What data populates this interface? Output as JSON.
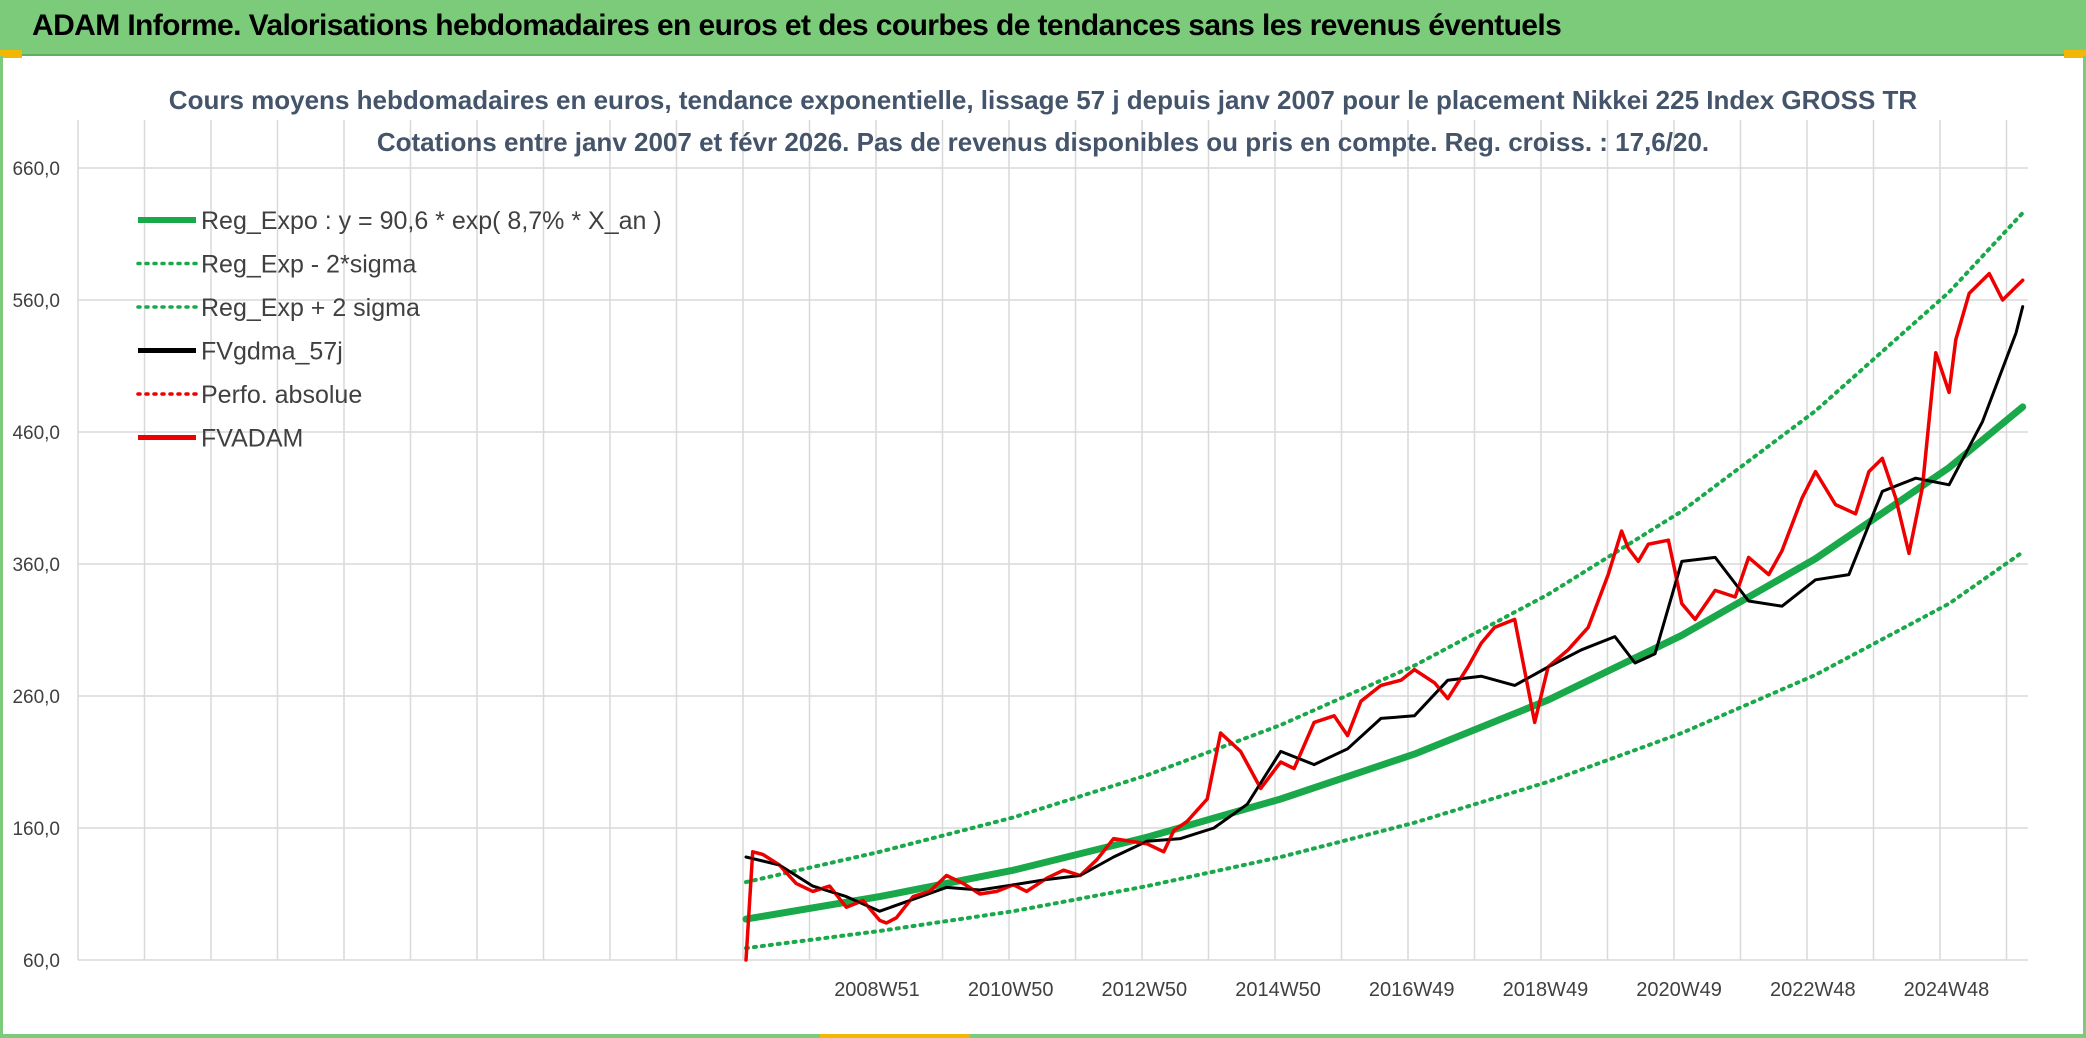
{
  "header": {
    "title": "ADAM Informe. Valorisations hebdomadaires en euros et des courbes de tendances sans les revenus éventuels"
  },
  "colors": {
    "header_bg": "#7ccb7b",
    "accent": "#f2b705",
    "reg_green": "#19a84a",
    "fv_red": "#ee0000",
    "gdma_black": "#000000"
  },
  "chart_data": {
    "type": "line",
    "title": "Cours moyens hebdomadaires en euros, tendance exponentielle, lissage 57 j depuis janv 2007 pour le placement Nikkei 225 Index GROSS TR",
    "subtitle": "Cotations entre janv 2007 et févr 2026. Pas de revenus disponibles ou pris en compte. Reg. croiss. : 17,6/20.",
    "xlabel": "",
    "ylabel": "",
    "ylim": [
      60,
      660
    ],
    "yticks": [
      "60,0",
      "160,0",
      "260,0",
      "360,0",
      "460,0",
      "560,0",
      "660,0"
    ],
    "xticks": [
      "2008W51",
      "2010W50",
      "2012W50",
      "2014W50",
      "2016W49",
      "2018W49",
      "2020W49",
      "2022W48",
      "2024W48"
    ],
    "xtick_years": [
      2008.96,
      2010.96,
      2012.96,
      2014.96,
      2016.96,
      2018.96,
      2020.96,
      2022.96,
      2024.96
    ],
    "grid": true,
    "legend_position": "top-left",
    "series": [
      {
        "name": "Reg_Expo : y = 90,6 * exp( 8,7% *  X_an )",
        "color": "#19a84a",
        "style": "solid-thick",
        "x": [
          2007.0,
          2009.0,
          2011.0,
          2013.0,
          2015.0,
          2017.0,
          2019.0,
          2021.0,
          2023.0,
          2025.0,
          2026.1
        ],
        "y": [
          91,
          108,
          128,
          153,
          182,
          216,
          257,
          306,
          364,
          433,
          479
        ]
      },
      {
        "name": "Reg_Exp - 2*sigma",
        "color": "#19a84a",
        "style": "dotted",
        "x": [
          2007.0,
          2009.0,
          2011.0,
          2013.0,
          2015.0,
          2017.0,
          2019.0,
          2021.0,
          2023.0,
          2025.0,
          2026.1
        ],
        "y": [
          69,
          82,
          97,
          116,
          138,
          164,
          195,
          232,
          276,
          330,
          369
        ]
      },
      {
        "name": "Reg_Exp + 2 sigma",
        "color": "#19a84a",
        "style": "dotted",
        "x": [
          2007.0,
          2009.0,
          2011.0,
          2013.0,
          2015.0,
          2017.0,
          2019.0,
          2021.0,
          2023.0,
          2025.0,
          2026.1
        ],
        "y": [
          119,
          142,
          168,
          200,
          238,
          283,
          337,
          400,
          476,
          566,
          626
        ]
      },
      {
        "name": "FVgdma_57j",
        "color": "#000000",
        "style": "solid",
        "x": [
          2007.0,
          2007.5,
          2008.0,
          2008.5,
          2009.0,
          2009.5,
          2010.0,
          2010.5,
          2011.0,
          2011.5,
          2012.0,
          2012.5,
          2013.0,
          2013.5,
          2014.0,
          2014.5,
          2015.0,
          2015.5,
          2016.0,
          2016.5,
          2017.0,
          2017.5,
          2018.0,
          2018.5,
          2019.0,
          2019.5,
          2020.0,
          2020.3,
          2020.6,
          2021.0,
          2021.5,
          2022.0,
          2022.5,
          2023.0,
          2023.5,
          2024.0,
          2024.5,
          2025.0,
          2025.5,
          2026.0,
          2026.1
        ],
        "y": [
          138,
          132,
          116,
          108,
          97,
          106,
          115,
          113,
          117,
          121,
          124,
          138,
          150,
          152,
          160,
          178,
          218,
          208,
          220,
          243,
          245,
          272,
          275,
          268,
          282,
          295,
          305,
          285,
          292,
          362,
          365,
          332,
          328,
          348,
          352,
          415,
          425,
          420,
          468,
          535,
          555
        ]
      },
      {
        "name": "Perfo. absolue",
        "color": "#ee0000",
        "style": "dotted",
        "x": [],
        "y": []
      },
      {
        "name": "FVADAM",
        "color": "#ee0000",
        "style": "solid-thick",
        "x": [
          2007.0,
          2007.1,
          2007.25,
          2007.5,
          2007.75,
          2008.0,
          2008.25,
          2008.5,
          2008.75,
          2009.0,
          2009.1,
          2009.25,
          2009.5,
          2009.75,
          2010.0,
          2010.25,
          2010.5,
          2010.75,
          2011.0,
          2011.2,
          2011.5,
          2011.75,
          2012.0,
          2012.25,
          2012.5,
          2012.75,
          2013.0,
          2013.25,
          2013.4,
          2013.6,
          2013.9,
          2014.1,
          2014.4,
          2014.7,
          2015.0,
          2015.2,
          2015.5,
          2015.8,
          2016.0,
          2016.2,
          2016.5,
          2016.8,
          2017.0,
          2017.3,
          2017.5,
          2017.8,
          2018.0,
          2018.2,
          2018.5,
          2018.8,
          2019.0,
          2019.3,
          2019.6,
          2019.9,
          2020.1,
          2020.2,
          2020.35,
          2020.5,
          2020.8,
          2021.0,
          2021.2,
          2021.5,
          2021.8,
          2022.0,
          2022.3,
          2022.5,
          2022.8,
          2023.0,
          2023.3,
          2023.6,
          2023.8,
          2024.0,
          2024.2,
          2024.4,
          2024.6,
          2024.8,
          2025.0,
          2025.1,
          2025.3,
          2025.6,
          2025.8,
          2026.0,
          2026.1
        ],
        "y": [
          60,
          142,
          140,
          132,
          118,
          112,
          116,
          100,
          105,
          90,
          88,
          92,
          108,
          112,
          124,
          118,
          110,
          112,
          117,
          112,
          122,
          128,
          124,
          136,
          152,
          150,
          148,
          142,
          158,
          165,
          182,
          232,
          218,
          190,
          210,
          205,
          240,
          245,
          230,
          256,
          268,
          272,
          280,
          270,
          258,
          282,
          300,
          312,
          318,
          240,
          282,
          295,
          312,
          352,
          385,
          372,
          362,
          375,
          378,
          330,
          318,
          340,
          335,
          365,
          352,
          370,
          410,
          430,
          405,
          398,
          430,
          440,
          410,
          368,
          418,
          520,
          490,
          530,
          565,
          580,
          560,
          570,
          575
        ]
      }
    ]
  }
}
